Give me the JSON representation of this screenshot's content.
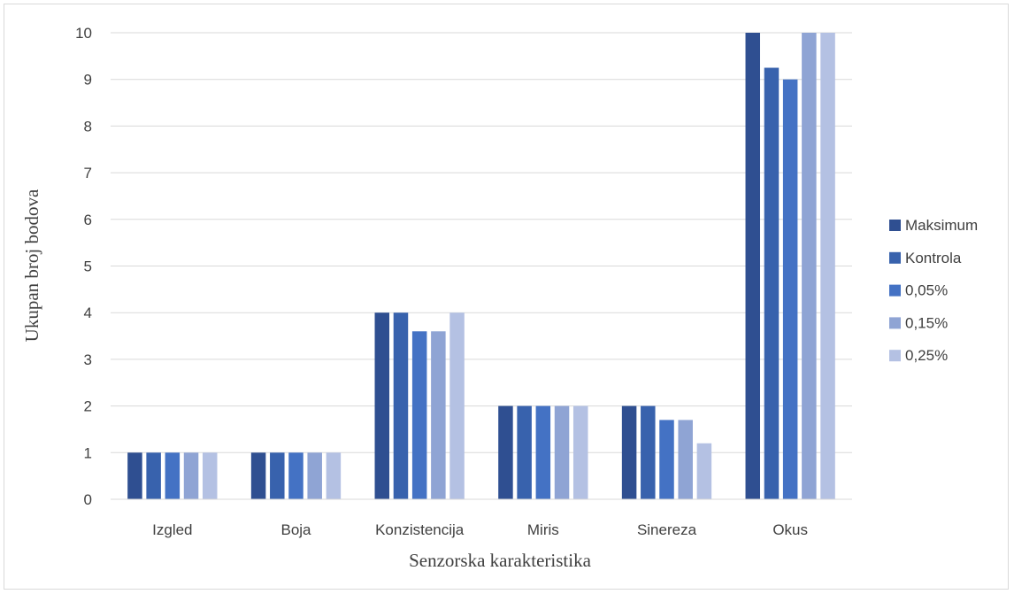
{
  "chart_data": {
    "type": "bar",
    "title": "",
    "xlabel": "Senzorska karakteristika",
    "ylabel": "Ukupan broj bodova",
    "categories": [
      "Izgled",
      "Boja",
      "Konzistencija",
      "Miris",
      "Sinereza",
      "Okus"
    ],
    "series": [
      {
        "name": "Maksimum",
        "color": "#2f4f91",
        "values": [
          1,
          1,
          4,
          2,
          2,
          10
        ]
      },
      {
        "name": "Kontrola",
        "color": "#3862ad",
        "values": [
          1,
          1,
          4,
          2,
          2,
          9.25
        ]
      },
      {
        "name": "0,05%",
        "color": "#4472c4",
        "values": [
          1,
          1,
          3.6,
          2,
          1.7,
          9
        ]
      },
      {
        "name": "0,15%",
        "color": "#8fa4d4",
        "values": [
          1,
          1,
          3.6,
          2,
          1.7,
          10
        ]
      },
      {
        "name": "0,25%",
        "color": "#b4c1e3",
        "values": [
          1,
          1,
          4,
          2,
          1.2,
          10
        ]
      }
    ],
    "ylim": [
      0,
      10
    ],
    "yticks": [
      "0",
      "1",
      "2",
      "3",
      "4",
      "5",
      "6",
      "7",
      "8",
      "9",
      "10"
    ],
    "grid": true,
    "legend_position": "right"
  }
}
